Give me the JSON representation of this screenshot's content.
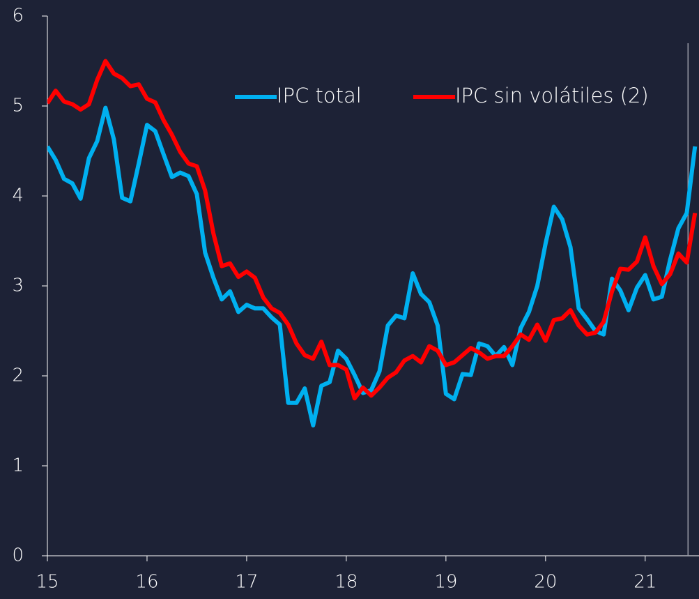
{
  "chart_data": {
    "type": "line",
    "x": [
      15,
      15.083,
      15.167,
      15.25,
      15.333,
      15.417,
      15.5,
      15.583,
      15.667,
      15.75,
      15.833,
      15.917,
      16,
      16.083,
      16.167,
      16.25,
      16.333,
      16.417,
      16.5,
      16.583,
      16.667,
      16.75,
      16.833,
      16.917,
      17,
      17.083,
      17.167,
      17.25,
      17.333,
      17.417,
      17.5,
      17.583,
      17.667,
      17.75,
      17.833,
      17.917,
      18,
      18.083,
      18.167,
      18.25,
      18.333,
      18.417,
      18.5,
      18.583,
      18.667,
      18.75,
      18.833,
      18.917,
      19,
      19.083,
      19.167,
      19.25,
      19.333,
      19.417,
      19.5,
      19.583,
      19.667,
      19.75,
      19.833,
      19.917,
      20,
      20.083,
      20.167,
      20.25,
      20.333,
      20.417,
      20.5,
      20.583,
      20.667,
      20.75,
      20.833,
      20.917,
      21,
      21.083,
      21.167,
      21.25,
      21.333,
      21.417,
      21.5
    ],
    "series": [
      {
        "name": "IPC total",
        "color": "#00b0f0",
        "values": [
          4.55,
          4.4,
          4.19,
          4.14,
          3.97,
          4.42,
          4.61,
          4.98,
          4.63,
          3.98,
          3.94,
          4.36,
          4.79,
          4.72,
          4.46,
          4.21,
          4.26,
          4.22,
          4.02,
          3.37,
          3.09,
          2.85,
          2.94,
          2.71,
          2.79,
          2.75,
          2.75,
          2.65,
          2.57,
          1.7,
          1.7,
          1.86,
          1.45,
          1.89,
          1.93,
          2.28,
          2.19,
          2.01,
          1.81,
          1.84,
          2.05,
          2.56,
          2.67,
          2.64,
          3.14,
          2.91,
          2.82,
          2.56,
          1.8,
          1.74,
          2.02,
          2.01,
          2.36,
          2.33,
          2.22,
          2.32,
          2.12,
          2.53,
          2.71,
          3.0,
          3.47,
          3.88,
          3.74,
          3.43,
          2.75,
          2.63,
          2.5,
          2.46,
          3.08,
          2.95,
          2.73,
          2.98,
          3.12,
          2.85,
          2.88,
          3.29,
          3.64,
          3.81,
          4.55
        ]
      },
      {
        "name": "IPC sin volátiles (2)",
        "color": "#ff0000",
        "values": [
          5.03,
          5.17,
          5.05,
          5.02,
          4.96,
          5.02,
          5.29,
          5.5,
          5.36,
          5.31,
          5.22,
          5.24,
          5.08,
          5.04,
          4.84,
          4.68,
          4.49,
          4.36,
          4.33,
          4.06,
          3.58,
          3.22,
          3.25,
          3.1,
          3.16,
          3.09,
          2.87,
          2.75,
          2.7,
          2.57,
          2.36,
          2.23,
          2.19,
          2.38,
          2.12,
          2.12,
          2.07,
          1.75,
          1.87,
          1.78,
          1.87,
          1.98,
          2.04,
          2.17,
          2.22,
          2.15,
          2.33,
          2.28,
          2.12,
          2.15,
          2.23,
          2.31,
          2.26,
          2.19,
          2.22,
          2.22,
          2.33,
          2.46,
          2.4,
          2.57,
          2.39,
          2.62,
          2.64,
          2.73,
          2.56,
          2.46,
          2.48,
          2.6,
          2.94,
          3.19,
          3.18,
          3.27,
          3.54,
          3.22,
          3.02,
          3.13,
          3.36,
          3.26,
          3.81
        ]
      }
    ],
    "xlim": [
      15,
      21.54
    ],
    "xticks": [
      15,
      16,
      17,
      18,
      19,
      20,
      21
    ],
    "ylim": [
      0,
      6
    ],
    "yticks": [
      0,
      1,
      2,
      3,
      4,
      5,
      6
    ],
    "reference_line_x": 21.43
  }
}
